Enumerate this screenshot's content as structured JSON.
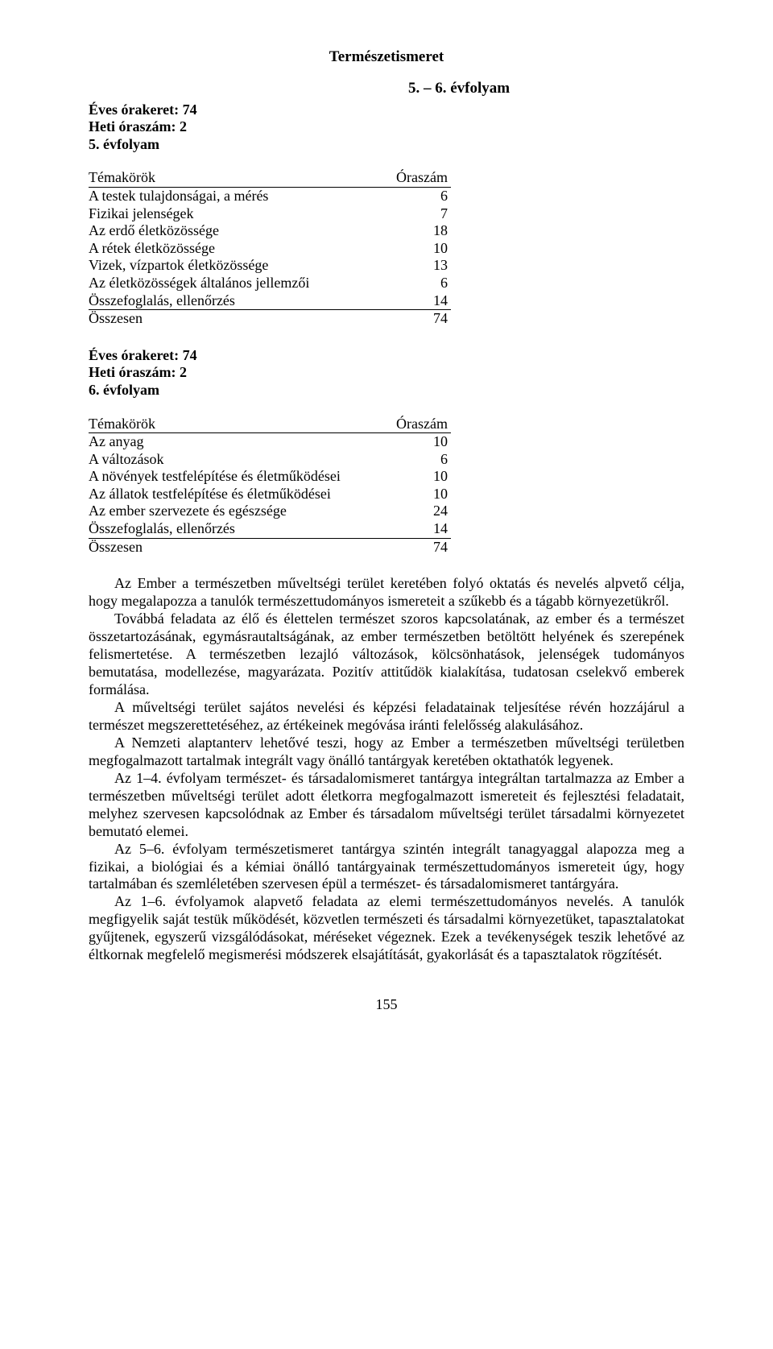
{
  "main_title": "Természetismeret",
  "subtitle": "5. – 6. évfolyam",
  "section1": {
    "yearly": "Éves órakeret: 74",
    "weekly": "Heti óraszám: 2",
    "grade": "5. évfolyam",
    "table_header_topic": "Témakörök",
    "table_header_hours": "Óraszám",
    "rows": [
      {
        "topic": "A testek tulajdonságai, a mérés",
        "hours": "6"
      },
      {
        "topic": "Fizikai jelenségek",
        "hours": "7"
      },
      {
        "topic": "Az erdő életközössége",
        "hours": "18"
      },
      {
        "topic": "A rétek életközössége",
        "hours": "10"
      },
      {
        "topic": "Vizek, vízpartok életközössége",
        "hours": "13"
      },
      {
        "topic": "Az életközösségek általános jellemzői",
        "hours": "6"
      },
      {
        "topic": "Összefoglalás, ellenőrzés",
        "hours": "14"
      }
    ],
    "total_label": "Összesen",
    "total_value": "74"
  },
  "section2": {
    "yearly": "Éves órakeret: 74",
    "weekly": "Heti óraszám: 2",
    "grade": "6. évfolyam",
    "table_header_topic": "Témakörök",
    "table_header_hours": "Óraszám",
    "rows": [
      {
        "topic": "Az anyag",
        "hours": "10"
      },
      {
        "topic": "A változások",
        "hours": "6"
      },
      {
        "topic": "A növények testfelépítése és életműködései",
        "hours": "10"
      },
      {
        "topic": "Az állatok testfelépítése és életműködései",
        "hours": "10"
      },
      {
        "topic": "Az ember szervezete és egészsége",
        "hours": "24"
      },
      {
        "topic": "Összefoglalás, ellenőrzés",
        "hours": "14"
      }
    ],
    "total_label": "Összesen",
    "total_value": "74"
  },
  "paragraphs": [
    "Az Ember a természetben műveltségi terület keretében folyó oktatás és nevelés alpvető célja, hogy megalapozza a tanulók természettudományos ismereteit a szűkebb és a tágabb környezetükről.",
    "Továbbá feladata az élő és élettelen természet szoros kapcsolatának, az ember és a természet összetartozásának, egymásrautaltságának, az ember természetben betöltött helyének és szerepének felismertetése. A természetben lezajló változások, kölcsönhatások, jelenségek tudományos bemutatása, modellezése, magyarázata. Pozitív attitűdök kialakítása, tudatosan cselekvő emberek formálása.",
    "A műveltségi terület sajátos nevelési és képzési feladatainak teljesítése révén hozzájárul a természet megszerettetéséhez, az értékeinek megóvása iránti felelősség alakulásához.",
    "A Nemzeti alaptanterv lehetővé teszi, hogy az Ember a természetben műveltségi területben megfogalmazott tartalmak integrált vagy önálló tantárgyak keretében oktathatók legyenek.",
    "Az 1–4. évfolyam természet- és társadalomismeret tantárgya integráltan tartalmazza az Ember a természetben műveltségi terület adott életkorra megfogalmazott ismereteit és fejlesztési feladatait, melyhez szervesen kapcsolódnak az Ember és társadalom műveltségi terület társadalmi környezetet bemutató elemei.",
    "Az 5–6. évfolyam természetismeret tantárgya szintén integrált tanagyaggal alapozza meg a fizikai, a biológiai és a kémiai önálló tantárgyainak természettudományos ismereteit úgy, hogy tartalmában és szemléletében szervesen épül a természet- és társadalomismeret tantárgyára.",
    "Az 1–6. évfolyamok alapvető feladata az elemi természettudományos nevelés. A tanulók megfigyelik saját testük működését, közvetlen természeti és társadalmi környezetüket, tapasztalatokat gyűjtenek, egyszerű vizsgálódásokat, méréseket végeznek. Ezek a tevékenységek teszik lehetővé az éltkornak megfelelő megismerési módszerek elsajátítását, gyakorlását és a tapasztalatok rögzítését."
  ],
  "page_number": "155"
}
